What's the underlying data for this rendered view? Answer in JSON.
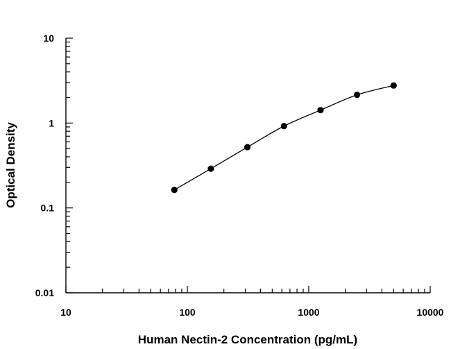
{
  "chart_data": {
    "type": "scatter",
    "title": "",
    "xlabel": "Human Nectin-2 Concentration (pg/mL)",
    "ylabel": "Optical Density",
    "xscale": "log",
    "yscale": "log",
    "xlim": [
      10,
      10000
    ],
    "ylim": [
      0.01,
      10
    ],
    "x_tick_labels": [
      "10",
      "100",
      "1000",
      "10000"
    ],
    "y_tick_labels": [
      "0.01",
      "0.1",
      "1",
      "10"
    ],
    "grid": false,
    "legend": "none",
    "fit_curve": true,
    "series": [
      {
        "x": [
          78.125,
          156.25,
          312.5,
          625,
          1250,
          2500,
          5000
        ],
        "y": [
          0.163,
          0.29,
          0.52,
          0.92,
          1.42,
          2.15,
          2.77
        ]
      }
    ]
  }
}
